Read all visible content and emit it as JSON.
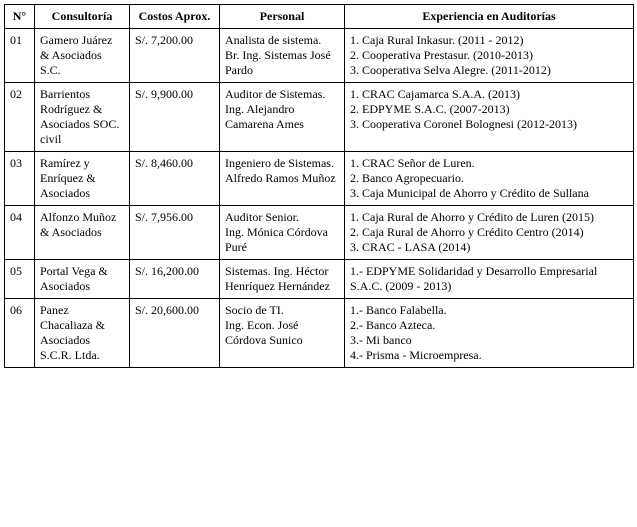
{
  "columns": [
    "N°",
    "Consultoría",
    "Costos Aprox.",
    "Personal",
    "Experiencia en Auditorías"
  ],
  "rows": [
    {
      "num": "01",
      "consultoria": "Gamero Juárez & Asociados S.C.",
      "costos": "S/. 7,200.00",
      "personal": "Analista de sistema.\nBr. Ing. Sistemas José Pardo",
      "experiencia": "1. Caja Rural Inkasur. (2011 - 2012)\n2. Cooperativa Prestasur. (2010-2013)\n3. Cooperativa Selva Alegre. (2011-2012)"
    },
    {
      "num": "02",
      "consultoria": "Barrientos Rodríguez & Asociados SOC. civil",
      "costos": "S/. 9,900.00",
      "personal": "Auditor de Sistemas.\nIng. Alejandro Camarena Ames",
      "experiencia": "1. CRAC Cajamarca S.A.A. (2013)\n2. EDPYME S.A.C. (2007-2013)\n3. Cooperativa Coronel Bolognesi (2012-2013)"
    },
    {
      "num": "03",
      "consultoria": "Ramírez y Enríquez & Asociados",
      "costos": "S/. 8,460.00",
      "personal": "Ingeniero de Sistemas.\nAlfredo Ramos Muñoz",
      "experiencia": "1. CRAC Señor de Luren.\n2. Banco Agropecuario.\n3. Caja Municipal de Ahorro y Crédito de Sullana"
    },
    {
      "num": "04",
      "consultoria": "Alfonzo Muñoz & Asociados",
      "costos": "S/. 7,956.00",
      "personal": "Auditor Senior.\nIng. Mónica Córdova Puré",
      "experiencia": "1. Caja Rural de Ahorro y Crédito de Luren (2015)\n2. Caja Rural de Ahorro y Crédito Centro (2014)\n3. CRAC - LASA (2014)"
    },
    {
      "num": "05",
      "consultoria": "Portal Vega & Asociados",
      "costos": "S/. 16,200.00",
      "personal": "Sistemas. Ing. Héctor Henríquez Hernández",
      "experiencia": "1.- EDPYME Solidaridad y Desarrollo Empresarial S.A.C. (2009 - 2013)"
    },
    {
      "num": "06",
      "consultoria": "Panez Chacaliaza & Asociados S.C.R. Ltda.",
      "costos": "S/. 20,600.00",
      "personal": "Socio de TI.\nIng. Econ. José Córdova Sunico",
      "experiencia": "1.- Banco Falabella.\n2.- Banco Azteca.\n3.- Mi banco\n4.- Prisma - Microempresa."
    }
  ]
}
